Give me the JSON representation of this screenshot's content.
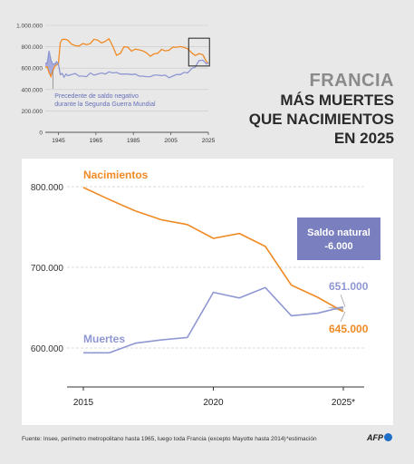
{
  "header": {
    "country": "FRANCIA",
    "headline_lines": [
      "MÁS MUERTES",
      "QUE NACIMIENTOS",
      "EN 2025"
    ]
  },
  "colors": {
    "births": "#f08a24",
    "deaths": "#8f97d2",
    "balance_box": "#7a7fbf",
    "negative_fill": "#9aa0d8"
  },
  "chart_data": [
    {
      "type": "line",
      "x": [
        1938,
        1939,
        1940,
        1941,
        1942,
        1943,
        1944,
        1945,
        1946,
        1947,
        1948,
        1949,
        1950,
        1952,
        1954,
        1956,
        1958,
        1960,
        1962,
        1964,
        1966,
        1968,
        1970,
        1972,
        1974,
        1976,
        1978,
        1980,
        1982,
        1984,
        1986,
        1988,
        1990,
        1992,
        1994,
        1996,
        1998,
        2000,
        2002,
        2004,
        2006,
        2008,
        2010,
        2012,
        2014,
        2016,
        2018,
        2020,
        2022,
        2024,
        2025
      ],
      "series": [
        {
          "name": "",
          "values": [
            612,
            612,
            560,
            522,
            575,
            615,
            630,
            645,
            840,
            868,
            870,
            869,
            862,
            825,
            810,
            807,
            830,
            820,
            830,
            870,
            862,
            836,
            850,
            875,
            805,
            720,
            737,
            800,
            797,
            759,
            778,
            771,
            762,
            743,
            711,
            734,
            738,
            775,
            762,
            768,
            797,
            796,
            802,
            793,
            781,
            745,
            719,
            736,
            726,
            663,
            645
          ]
        },
        {
          "name": "",
          "values": [
            648,
            645,
            760,
            675,
            640,
            638,
            660,
            640,
            540,
            550,
            515,
            545,
            530,
            540,
            550,
            525,
            525,
            520,
            555,
            535,
            545,
            555,
            545,
            565,
            555,
            560,
            545,
            545,
            545,
            540,
            545,
            525,
            525,
            520,
            520,
            535,
            535,
            530,
            535,
            510,
            525,
            540,
            540,
            560,
            556,
            595,
            610,
            670,
            675,
            640,
            651
          ]
        }
      ],
      "ylim": [
        0,
        1000000
      ],
      "yticks": [
        "0",
        "200.000",
        "400.000",
        "600.000",
        "800.000",
        "1.000.000"
      ],
      "xticks": [
        "1945",
        "1965",
        "1985",
        "2005",
        "2025"
      ],
      "annotation": "Precedente de saldo negativo durante la Segunda Guerra Mundial"
    },
    {
      "type": "line",
      "x": [
        2015,
        2016,
        2017,
        2018,
        2019,
        2020,
        2021,
        2022,
        2023,
        2024,
        2025
      ],
      "series": [
        {
          "name": "Nacimientos",
          "values": [
            799000,
            784000,
            770000,
            759000,
            753000,
            736000,
            742000,
            726000,
            678000,
            663000,
            645000
          ]
        },
        {
          "name": "Muertes",
          "values": [
            594000,
            594000,
            606000,
            610000,
            613000,
            669000,
            662000,
            675000,
            640000,
            643000,
            651000
          ]
        }
      ],
      "ylim": [
        550000,
        830000
      ],
      "xlim": [
        2015,
        2025
      ],
      "yticks": [
        "600.000",
        "700.000",
        "800.000"
      ],
      "xticks": [
        "2015",
        "2020",
        "2025*"
      ],
      "end_labels": {
        "births": "645.000",
        "deaths": "651.000"
      },
      "callout": {
        "title": "Saldo natural",
        "value": "-6.000"
      }
    }
  ],
  "footer": {
    "source": "Fuente: Insee, perímetro metropolitano hasta 1965, luego toda Francia (excepto Mayotte hasta 2014)",
    "note": "*estimación",
    "logo": "AFP"
  }
}
